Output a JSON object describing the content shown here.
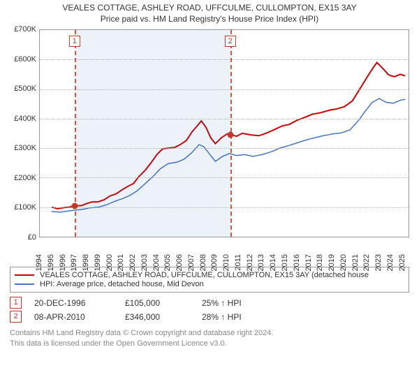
{
  "title_line1": "VEALES COTTAGE, ASHLEY ROAD, UFFCULME, CULLOMPTON, EX15 3AY",
  "title_line2": "Price paid vs. HM Land Registry's House Price Index (HPI)",
  "chart": {
    "type": "line",
    "x_domain_years": [
      1994,
      2025.5
    ],
    "y_domain": [
      0,
      700000
    ],
    "y_ticks": [
      0,
      100000,
      200000,
      300000,
      400000,
      500000,
      600000,
      700000
    ],
    "y_tick_labels": [
      "£0",
      "£100K",
      "£200K",
      "£300K",
      "£400K",
      "£500K",
      "£600K",
      "£700K"
    ],
    "x_ticks": [
      1994,
      1995,
      1996,
      1997,
      1998,
      1999,
      2000,
      2001,
      2002,
      2003,
      2004,
      2005,
      2006,
      2007,
      2008,
      2009,
      2010,
      2011,
      2012,
      2013,
      2014,
      2015,
      2016,
      2017,
      2018,
      2019,
      2020,
      2021,
      2022,
      2023,
      2024,
      2025
    ],
    "grid_color": "#bbbbbb",
    "border_color": "#999999",
    "bg_color": "#ffffff",
    "band": {
      "from_year": 1996.97,
      "to_year": 2010.27,
      "fill": "rgba(70,130,180,.10)"
    },
    "vlines": [
      {
        "year": 1996.97,
        "color": "#e74c3c"
      },
      {
        "year": 2010.27,
        "color": "#e74c3c"
      }
    ],
    "flags": [
      {
        "n": "1",
        "year": 1996.97
      },
      {
        "n": "2",
        "year": 2010.27
      }
    ],
    "markers": [
      {
        "year": 1996.97,
        "value": 105000,
        "color": "#c0392b"
      },
      {
        "year": 2010.27,
        "value": 346000,
        "color": "#c0392b"
      }
    ],
    "series": [
      {
        "name": "property",
        "color": "#cc0000",
        "width": 2,
        "points": [
          [
            1995.0,
            100000
          ],
          [
            1995.5,
            95000
          ],
          [
            1996.0,
            98000
          ],
          [
            1996.5,
            100000
          ],
          [
            1996.97,
            105000
          ],
          [
            1997.5,
            105000
          ],
          [
            1998.0,
            112000
          ],
          [
            1998.5,
            118000
          ],
          [
            1999.0,
            118000
          ],
          [
            1999.5,
            125000
          ],
          [
            2000.0,
            138000
          ],
          [
            2000.5,
            145000
          ],
          [
            2001.0,
            158000
          ],
          [
            2001.5,
            170000
          ],
          [
            2002.0,
            180000
          ],
          [
            2002.5,
            205000
          ],
          [
            2003.0,
            225000
          ],
          [
            2003.5,
            250000
          ],
          [
            2004.0,
            278000
          ],
          [
            2004.5,
            298000
          ],
          [
            2005.0,
            300000
          ],
          [
            2005.5,
            302000
          ],
          [
            2006.0,
            312000
          ],
          [
            2006.5,
            325000
          ],
          [
            2007.0,
            355000
          ],
          [
            2007.5,
            378000
          ],
          [
            2007.8,
            392000
          ],
          [
            2008.2,
            370000
          ],
          [
            2008.6,
            335000
          ],
          [
            2009.0,
            315000
          ],
          [
            2009.5,
            335000
          ],
          [
            2010.0,
            348000
          ],
          [
            2010.27,
            346000
          ],
          [
            2010.8,
            340000
          ],
          [
            2011.3,
            350000
          ],
          [
            2012.0,
            345000
          ],
          [
            2012.7,
            342000
          ],
          [
            2013.3,
            350000
          ],
          [
            2014.0,
            362000
          ],
          [
            2014.7,
            375000
          ],
          [
            2015.3,
            380000
          ],
          [
            2016.0,
            395000
          ],
          [
            2016.7,
            405000
          ],
          [
            2017.3,
            415000
          ],
          [
            2018.0,
            420000
          ],
          [
            2018.7,
            428000
          ],
          [
            2019.3,
            432000
          ],
          [
            2020.0,
            440000
          ],
          [
            2020.7,
            460000
          ],
          [
            2021.3,
            498000
          ],
          [
            2021.8,
            530000
          ],
          [
            2022.3,
            562000
          ],
          [
            2022.8,
            590000
          ],
          [
            2023.3,
            570000
          ],
          [
            2023.8,
            548000
          ],
          [
            2024.3,
            542000
          ],
          [
            2024.8,
            550000
          ],
          [
            2025.2,
            545000
          ]
        ]
      },
      {
        "name": "hpi",
        "color": "#4472c4",
        "width": 1.5,
        "points": [
          [
            1995.0,
            85000
          ],
          [
            1995.7,
            83000
          ],
          [
            1996.3,
            86000
          ],
          [
            1997.0,
            90000
          ],
          [
            1997.7,
            93000
          ],
          [
            1998.3,
            98000
          ],
          [
            1999.0,
            100000
          ],
          [
            1999.7,
            108000
          ],
          [
            2000.3,
            118000
          ],
          [
            2001.0,
            128000
          ],
          [
            2001.7,
            140000
          ],
          [
            2002.3,
            155000
          ],
          [
            2003.0,
            180000
          ],
          [
            2003.7,
            205000
          ],
          [
            2004.3,
            230000
          ],
          [
            2005.0,
            248000
          ],
          [
            2005.7,
            252000
          ],
          [
            2006.3,
            262000
          ],
          [
            2007.0,
            285000
          ],
          [
            2007.6,
            312000
          ],
          [
            2008.0,
            305000
          ],
          [
            2008.5,
            280000
          ],
          [
            2009.0,
            255000
          ],
          [
            2009.6,
            272000
          ],
          [
            2010.2,
            282000
          ],
          [
            2010.8,
            275000
          ],
          [
            2011.5,
            278000
          ],
          [
            2012.2,
            272000
          ],
          [
            2013.0,
            278000
          ],
          [
            2013.8,
            288000
          ],
          [
            2014.5,
            300000
          ],
          [
            2015.2,
            308000
          ],
          [
            2016.0,
            318000
          ],
          [
            2016.8,
            328000
          ],
          [
            2017.5,
            335000
          ],
          [
            2018.2,
            342000
          ],
          [
            2019.0,
            348000
          ],
          [
            2019.8,
            352000
          ],
          [
            2020.5,
            362000
          ],
          [
            2021.2,
            392000
          ],
          [
            2021.8,
            425000
          ],
          [
            2022.4,
            455000
          ],
          [
            2023.0,
            468000
          ],
          [
            2023.6,
            455000
          ],
          [
            2024.2,
            452000
          ],
          [
            2024.8,
            462000
          ],
          [
            2025.2,
            465000
          ]
        ]
      }
    ]
  },
  "legend": {
    "items": [
      {
        "color": "#cc0000",
        "label": "VEALES COTTAGE, ASHLEY ROAD, UFFCULME, CULLOMPTON, EX15 3AY (detached house"
      },
      {
        "color": "#4472c4",
        "label": "HPI: Average price, detached house, Mid Devon"
      }
    ]
  },
  "events": [
    {
      "n": "1",
      "date": "20-DEC-1996",
      "price": "£105,000",
      "pct": "25% ↑ HPI"
    },
    {
      "n": "2",
      "date": "08-APR-2010",
      "price": "£346,000",
      "pct": "28% ↑ HPI"
    }
  ],
  "footer_line1": "Contains HM Land Registry data © Crown copyright and database right 2024.",
  "footer_line2": "This data is licensed under the Open Government Licence v3.0."
}
